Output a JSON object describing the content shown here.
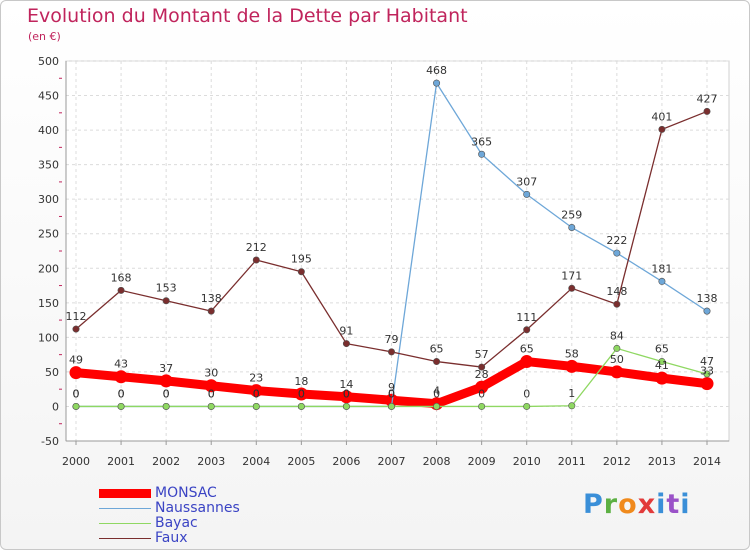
{
  "title": "Evolution du Montant de la Dette par Habitant",
  "unit_label": "(en €)",
  "logo_text": "Proxiti",
  "chart_data": {
    "type": "line",
    "x": [
      2000,
      2001,
      2002,
      2003,
      2004,
      2005,
      2006,
      2007,
      2008,
      2009,
      2010,
      2011,
      2012,
      2013,
      2014
    ],
    "ylim": [
      -50,
      500
    ],
    "yticks": [
      -50,
      0,
      50,
      100,
      150,
      200,
      250,
      300,
      350,
      400,
      450,
      500
    ],
    "grid": true,
    "legend_position": "bottom-left",
    "series": [
      {
        "name": "MONSAC",
        "color": "#ff0000",
        "values": [
          49,
          43,
          37,
          30,
          23,
          18,
          14,
          9,
          4,
          28,
          65,
          58,
          50,
          41,
          33
        ],
        "labels": [
          "49",
          "43",
          "37",
          "30",
          "23",
          "18",
          "14",
          "9",
          "4",
          "28",
          "65",
          "58",
          "50",
          "41",
          "33"
        ]
      },
      {
        "name": "Naussannes",
        "color": "#6ea7d8",
        "values": [
          0,
          0,
          0,
          0,
          0,
          0,
          0,
          0,
          468,
          365,
          307,
          259,
          222,
          181,
          138
        ],
        "labels": [
          "0",
          "0",
          "0",
          "0",
          "0",
          "0",
          "0",
          "0",
          "468",
          "365",
          "307",
          "259",
          "222",
          "181",
          "138"
        ]
      },
      {
        "name": "Bayac",
        "color": "#8fd862",
        "values": [
          0,
          0,
          0,
          0,
          0,
          0,
          0,
          0,
          0,
          0,
          0,
          1,
          84,
          65,
          47
        ],
        "labels": [
          "0",
          "0",
          "0",
          "0",
          "0",
          "0",
          "0",
          "0",
          "0",
          "0",
          "0",
          "1",
          "84",
          "65",
          "47"
        ]
      },
      {
        "name": "Faux",
        "color": "#7a2e2e",
        "values": [
          112,
          168,
          153,
          138,
          212,
          195,
          91,
          79,
          65,
          57,
          111,
          171,
          148,
          401,
          427
        ],
        "labels": [
          "112",
          "168",
          "153",
          "138",
          "212",
          "195",
          "91",
          "79",
          "65",
          "57",
          "111",
          "171",
          "148",
          "401",
          "427"
        ]
      }
    ]
  }
}
